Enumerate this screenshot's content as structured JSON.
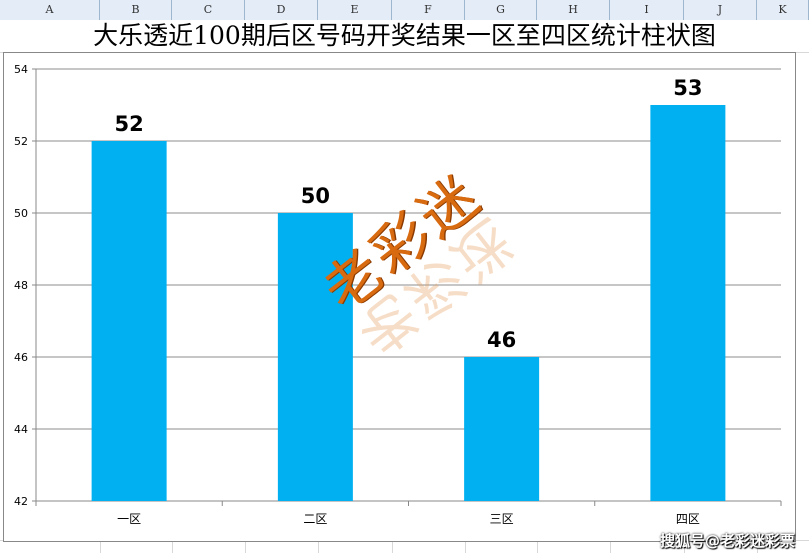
{
  "spreadsheet": {
    "columns": [
      "A",
      "B",
      "C",
      "D",
      "E",
      "F",
      "G",
      "H",
      "I",
      "J",
      "K"
    ]
  },
  "chart_data": {
    "type": "bar",
    "title": "大乐透近100期后区号码开奖结果一区至四区统计柱状图",
    "categories": [
      "一区",
      "二区",
      "三区",
      "四区"
    ],
    "values": [
      52,
      50,
      46,
      53
    ],
    "data_labels": [
      "52",
      "50",
      "46",
      "53"
    ],
    "ylim": [
      42,
      54
    ],
    "yticks": [
      "42",
      "44",
      "46",
      "48",
      "50",
      "52",
      "54"
    ],
    "grid": true,
    "bar_color": "#00b0f0",
    "legend": "none"
  },
  "watermark": {
    "main": "老彩迷",
    "source": "搜狐号@老彩迷彩票",
    "color": "#d86a10"
  }
}
